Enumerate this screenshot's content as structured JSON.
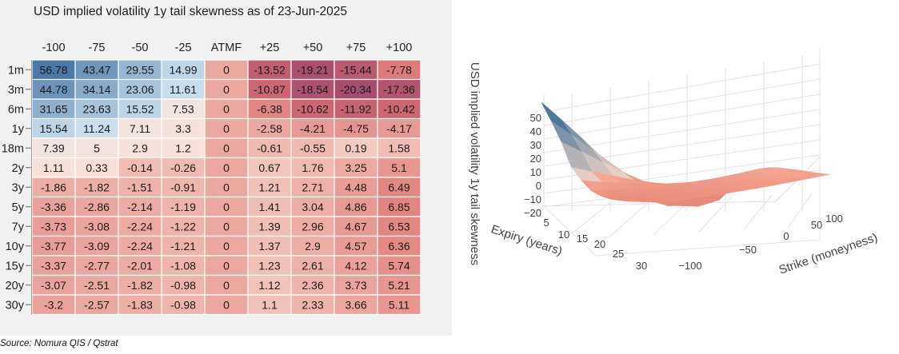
{
  "source": "Source: Nomura QIS / Qstrat",
  "chart_data": [
    {
      "type": "heatmap",
      "title": "USD implied volatility 1y tail skewness as of 23-Jun-2025",
      "columns": [
        "-100",
        "-75",
        "-50",
        "-25",
        "ATMF",
        "+25",
        "+50",
        "+75",
        "+100"
      ],
      "rows": [
        "1m",
        "3m",
        "6m",
        "1y",
        "18m",
        "2y",
        "3y",
        "5y",
        "7y",
        "10y",
        "15y",
        "20y",
        "30y"
      ],
      "values": [
        [
          56.78,
          43.47,
          29.55,
          14.99,
          0,
          -13.52,
          -19.21,
          -15.44,
          -7.78
        ],
        [
          44.78,
          34.14,
          23.06,
          11.61,
          0,
          -10.87,
          -18.54,
          -20.34,
          -17.36
        ],
        [
          31.65,
          23.63,
          15.52,
          7.53,
          0,
          -6.38,
          -10.62,
          -11.92,
          -10.42
        ],
        [
          15.54,
          11.24,
          7.11,
          3.3,
          0,
          -2.58,
          -4.21,
          -4.75,
          -4.17
        ],
        [
          7.39,
          5,
          2.9,
          1.2,
          0,
          -0.61,
          -0.55,
          0.19,
          1.58
        ],
        [
          1.11,
          0.33,
          -0.14,
          -0.26,
          0,
          0.67,
          1.76,
          3.25,
          5.1
        ],
        [
          -1.86,
          -1.82,
          -1.51,
          -0.91,
          0,
          1.21,
          2.71,
          4.48,
          6.49
        ],
        [
          -3.36,
          -2.86,
          -2.14,
          -1.19,
          0,
          1.41,
          3.04,
          4.86,
          6.85
        ],
        [
          -3.73,
          -3.08,
          -2.24,
          -1.22,
          0,
          1.39,
          2.96,
          4.67,
          6.53
        ],
        [
          -3.77,
          -3.09,
          -2.24,
          -1.21,
          0,
          1.37,
          2.9,
          4.57,
          6.36
        ],
        [
          -3.37,
          -2.77,
          -2.01,
          -1.08,
          0,
          1.23,
          2.61,
          4.12,
          5.74
        ],
        [
          -3.07,
          -2.51,
          -1.82,
          -0.98,
          0,
          1.12,
          2.36,
          3.73,
          5.21
        ],
        [
          -3.2,
          -2.57,
          -1.83,
          -0.98,
          0,
          1.1,
          2.33,
          3.66,
          5.11
        ]
      ],
      "colors": {
        "high": "#4a78a8",
        "mid": "#f9e3da",
        "low": "#a64d6e"
      }
    },
    {
      "type": "surface",
      "zlabel": "USD implied volatility 1y tail skewness",
      "xlabel": "Expiry (years)",
      "ylabel": "Strike (moneyness)",
      "z_ticks": [
        "50",
        "40",
        "30",
        "20",
        "10",
        "0",
        "−10",
        "−20"
      ],
      "x_ticks": [
        "5",
        "10",
        "15",
        "20",
        "25",
        "30"
      ],
      "y_ticks": [
        "−100",
        "−50",
        "0",
        "50",
        "100"
      ],
      "expiry_years": [
        0.0833,
        0.25,
        0.5,
        1,
        1.5,
        2,
        3,
        5,
        7,
        10,
        15,
        20,
        30
      ],
      "strike_moneyness": [
        -100,
        -75,
        -50,
        -25,
        0,
        25,
        50,
        75,
        100
      ]
    }
  ]
}
